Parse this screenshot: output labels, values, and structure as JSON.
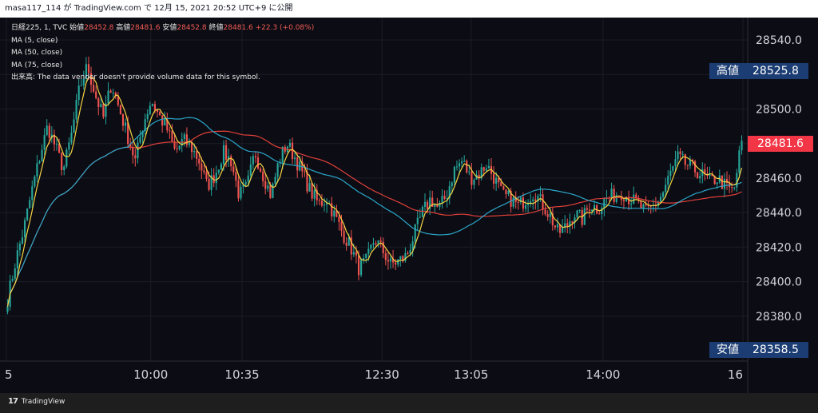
{
  "header": {
    "publish_line": "masa117_114 が TradingView.com で 12月 15, 2021 20:52 UTC+9 に公開"
  },
  "legend": {
    "symbol": "日経225, 1, TVC",
    "open_label": "始値",
    "open_value": "28452.8",
    "high_label": "高値",
    "high_value": "28481.6",
    "low_label": "安値",
    "low_value": "28452.8",
    "close_label": "終値",
    "close_value": "28481.6",
    "change": "+22.3 (+0.08%)",
    "ma1": "MA (5, close)",
    "ma2": "MA (50, close)",
    "ma3": "MA (75, close)",
    "volume_note": "出来高: The data vendor doesn't provide volume data for this symbol."
  },
  "badges": {
    "high_label": "高値",
    "high_value": "28525.8",
    "last_value": "28481.6",
    "low_label": "安値",
    "low_value": "28358.5"
  },
  "footer": {
    "brand": "TradingView"
  },
  "colors": {
    "up": "#26a69a",
    "down": "#ef5350",
    "ma5": "#f5d442",
    "ma50": "#2aa7c9",
    "ma75": "#e0413a",
    "badge_bg": "#1c3d73",
    "last_bg": "#f23645"
  },
  "chart_data": {
    "type": "candlestick",
    "y_ticks": [
      28540.0,
      28520.0,
      28500.0,
      28480.0,
      28460.0,
      28440.0,
      28420.0,
      28400.0,
      28380.0
    ],
    "y_tick_labels": [
      "28540.0",
      "28520.0",
      "28500.0",
      "28480.0",
      "28460.0",
      "28440.0",
      "28420.0",
      "28400.0",
      "28380.0"
    ],
    "ylim": [
      28354,
      28553
    ],
    "x_labels": [
      {
        "label": "5",
        "frac": 0.0
      },
      {
        "label": "10:00",
        "frac": 0.196
      },
      {
        "label": "10:35",
        "frac": 0.32
      },
      {
        "label": "12:30",
        "frac": 0.51
      },
      {
        "label": "13:05",
        "frac": 0.631
      },
      {
        "label": "14:00",
        "frac": 0.81
      },
      {
        "label": "16",
        "frac": 1.0
      }
    ],
    "close_path": [
      28390,
      28412,
      28430,
      28452,
      28472,
      28490,
      28478,
      28465,
      28485,
      28512,
      28525,
      28508,
      28495,
      28515,
      28500,
      28485,
      28470,
      28492,
      28505,
      28496,
      28488,
      28475,
      28482,
      28478,
      28470,
      28455,
      28462,
      28475,
      28470,
      28450,
      28455,
      28475,
      28462,
      28450,
      28470,
      28480,
      28472,
      28462,
      28452,
      28445,
      28448,
      28438,
      28428,
      28420,
      28408,
      28412,
      28425,
      28418,
      28410,
      28412,
      28415,
      28428,
      28440,
      28448,
      28442,
      28450,
      28465,
      28470,
      28460,
      28462,
      28468,
      28460,
      28450,
      28448,
      28444,
      28448,
      28452,
      28445,
      28438,
      28428,
      28432,
      28440,
      28436,
      28445,
      28442,
      28448,
      28450,
      28452,
      28448,
      28445,
      28440,
      28444,
      28450,
      28462,
      28472,
      28468,
      28465,
      28462,
      28458,
      28460,
      28455,
      28452,
      28482
    ],
    "open": 28452.8,
    "high": 28525.8,
    "low": 28358.5,
    "close": 28481.6
  }
}
